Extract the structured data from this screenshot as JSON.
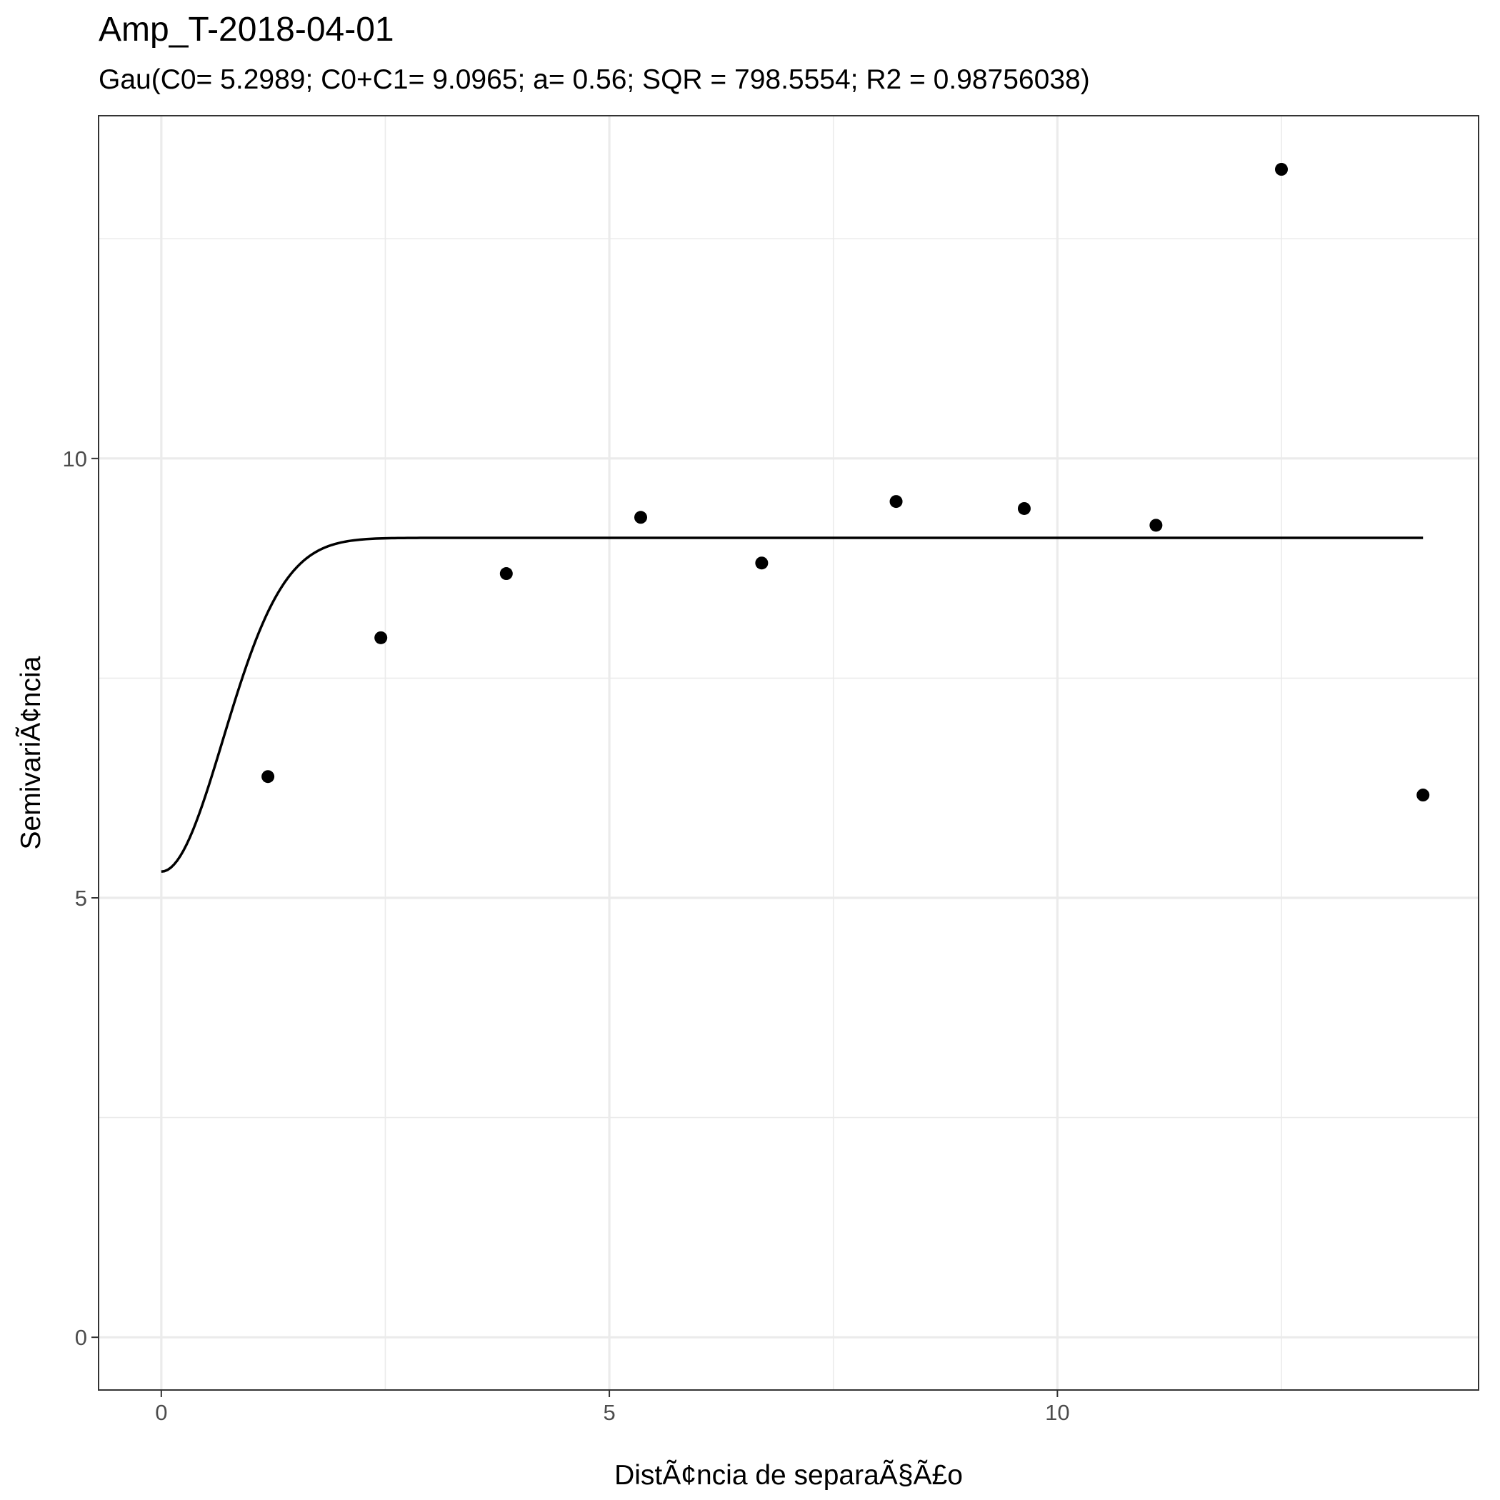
{
  "chart_data": {
    "type": "scatter",
    "title": "Amp_T-2018-04-01",
    "subtitle": "Gau(C0= 5.2989; C0+C1= 9.0965; a= 0.56; SQR = 798.5554; R2 = 0.98756038)",
    "xlabel": "DistÃ¢ncia de separaÃ§Ã£o",
    "ylabel": "SemivariÃ¢ncia",
    "xlim": [
      -0.7,
      14.7
    ],
    "ylim": [
      -0.6,
      13.9
    ],
    "x_ticks": [
      0,
      5,
      10
    ],
    "x_tick_labels": [
      "0",
      "5",
      "10"
    ],
    "y_ticks": [
      0,
      5,
      10
    ],
    "y_tick_labels": [
      "0",
      "5",
      "10"
    ],
    "grid": true,
    "legend": "none",
    "colors": {
      "points": "#000000",
      "line": "#000000",
      "grid": "#ebebeb",
      "frame": "#333333"
    },
    "series": [
      {
        "kind": "points",
        "x": [
          1.19,
          2.45,
          3.85,
          5.35,
          6.7,
          8.2,
          9.63,
          11.1,
          12.5,
          14.08
        ],
        "y": [
          6.38,
          7.96,
          8.69,
          9.33,
          8.81,
          9.51,
          9.43,
          9.24,
          13.29,
          6.17
        ]
      },
      {
        "kind": "model",
        "model": "gaussian",
        "c0": 5.2989,
        "sill": 9.0965,
        "a": 0.56,
        "x_range": [
          0,
          14.08
        ]
      }
    ]
  }
}
